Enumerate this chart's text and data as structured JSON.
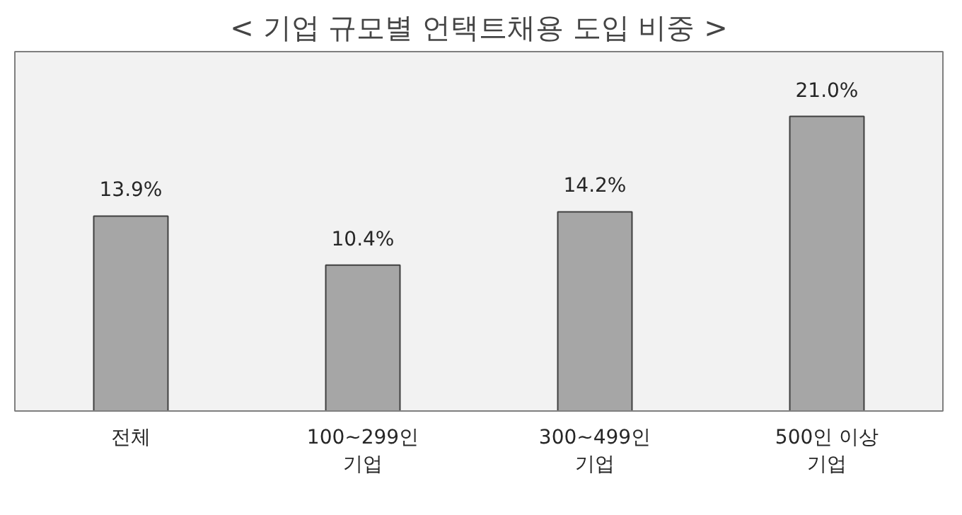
{
  "chart_data": {
    "type": "bar",
    "title": "< 기업 규모별 언택트채용 도입 비중 >",
    "categories": [
      "전체",
      "100~299인\n기업",
      "300~499인\n기업",
      "500인 이상\n기업"
    ],
    "values": [
      13.9,
      10.4,
      14.2,
      21.0
    ],
    "value_labels": [
      "13.9%",
      "10.4%",
      "14.2%",
      "21.0%"
    ],
    "color": "#a6a6a6",
    "tick_labels": "x",
    "grid": false
  }
}
